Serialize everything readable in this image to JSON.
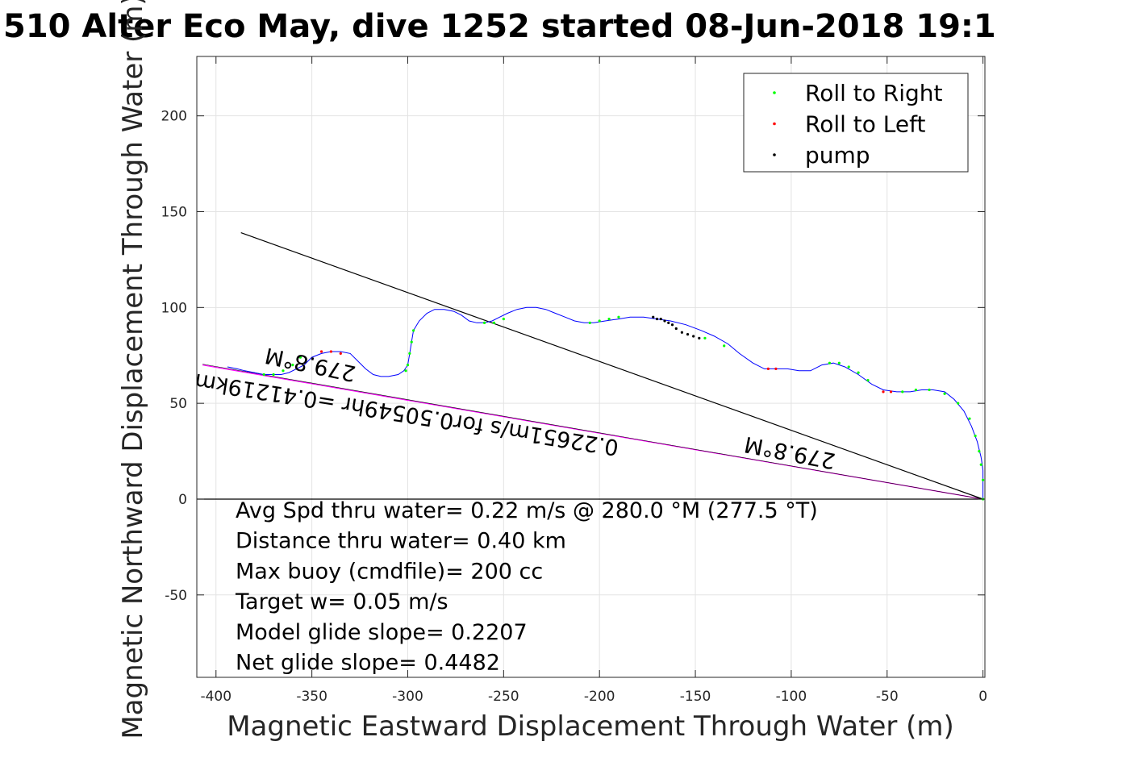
{
  "chart_data": {
    "type": "line",
    "title": "510 Alter Eco May, dive 1252 started 08-Jun-2018 19:1",
    "xlabel": "Magnetic Eastward Displacement Through Water (m)",
    "ylabel": "Magnetic Northward Displacement Through Water (m)",
    "xlim": [
      -410,
      1
    ],
    "ylim": [
      -93,
      231
    ],
    "xticks": [
      -400,
      -350,
      -300,
      -250,
      -200,
      -150,
      -100,
      -50,
      0
    ],
    "yticks": [
      -50,
      0,
      50,
      100,
      150,
      200
    ],
    "xtick_labels": [
      "-400",
      "-350",
      "-300",
      "-250",
      "-200",
      "-150",
      "-100",
      "-50",
      "0"
    ],
    "ytick_labels": [
      "-50",
      "0",
      "50",
      "100",
      "150",
      "200"
    ],
    "grid": true,
    "legend_position": "top-right",
    "legend": [
      {
        "label": "Roll to Right",
        "color": "#00ff00"
      },
      {
        "label": "Roll to Left",
        "color": "#ff0000"
      },
      {
        "label": "pump",
        "color": "#000000"
      }
    ],
    "track": {
      "name": "track through water",
      "color": "#0000ff",
      "x": [
        0,
        0,
        0,
        -1,
        -3,
        -6,
        -10,
        -15,
        -20,
        -26,
        -32,
        -38,
        -45,
        -52,
        -58,
        -65,
        -72,
        -78,
        -84,
        -90,
        -96,
        -102,
        -108,
        -114,
        -120,
        -127,
        -133,
        -140,
        -147,
        -155,
        -163,
        -170,
        -177,
        -184,
        -190,
        -197,
        -203,
        -208,
        -213,
        -218,
        -223,
        -228,
        -233,
        -238,
        -243,
        -248,
        -252,
        -256,
        -260,
        -264,
        -268,
        -272,
        -276,
        -281,
        -286,
        -290,
        -294,
        -297,
        -298,
        -299,
        -300,
        -302,
        -305,
        -310,
        -314,
        -318,
        -322,
        -326,
        -330,
        -335,
        -340,
        -345,
        -350,
        -354,
        -358,
        -362,
        -366,
        -370,
        -375,
        -380,
        -385,
        -389,
        -394
      ],
      "y": [
        0,
        8,
        15,
        22,
        30,
        38,
        46,
        52,
        56,
        57,
        57,
        56,
        56,
        57,
        60,
        65,
        69,
        71,
        70,
        67,
        67,
        68,
        68,
        68,
        71,
        76,
        81,
        85,
        88,
        91,
        93,
        94,
        95,
        95,
        94,
        93,
        92,
        92,
        93,
        95,
        97,
        99,
        100,
        100,
        99,
        97,
        95,
        93,
        92,
        92,
        93,
        96,
        98,
        99,
        99,
        97,
        93,
        88,
        82,
        76,
        70,
        67,
        65,
        64,
        64,
        65,
        68,
        72,
        76,
        77,
        77,
        76,
        74,
        70,
        68,
        66,
        65,
        65,
        65,
        66,
        67,
        68,
        69
      ]
    },
    "heading_line": {
      "name": "mean heading line",
      "color": "#000000",
      "x": [
        0,
        -387
      ],
      "y": [
        0,
        139
      ]
    },
    "displacement_line": {
      "name": "net displacement line",
      "color": "#ff00ff",
      "x": [
        0,
        -407
      ],
      "y": [
        0,
        70
      ]
    },
    "zero_line": {
      "name": "zero line",
      "color": "#000000",
      "x": [
        -410,
        0
      ],
      "y": [
        0,
        0
      ]
    },
    "roll_right_points": {
      "x": [
        0,
        0,
        -1,
        -2,
        -4,
        -7,
        -13,
        -20,
        -28,
        -35,
        -42,
        -60,
        -65,
        -70,
        -75,
        -80,
        -135,
        -145,
        -190,
        -195,
        -200,
        -205,
        -250,
        -255,
        -260,
        -297,
        -298,
        -299,
        -300,
        -301,
        -356,
        -360,
        -365,
        -370,
        -375
      ],
      "y": [
        0,
        10,
        18,
        25,
        33,
        42,
        50,
        55,
        57,
        57,
        56,
        62,
        66,
        69,
        71,
        71,
        80,
        84,
        95,
        94,
        93,
        92,
        94,
        92,
        92,
        88,
        82,
        76,
        70,
        67,
        74,
        70,
        67,
        65,
        65
      ]
    },
    "roll_left_points": {
      "x": [
        -48,
        -52,
        -108,
        -112,
        -335,
        -340,
        -345
      ],
      "y": [
        56,
        56,
        68,
        68,
        76,
        77,
        77
      ]
    },
    "pump_points": {
      "x": [
        -148,
        -151,
        -154,
        -157,
        -160,
        -162,
        -164,
        -166,
        -168,
        -170,
        -172
      ],
      "y": [
        84,
        85,
        86,
        87,
        89,
        91,
        92,
        93,
        94,
        94,
        95
      ]
    },
    "annotations": [
      {
        "text": "279.8°M",
        "x": -350,
        "y": 74
      },
      {
        "text": "279.8°M",
        "x": -100,
        "y": 28
      },
      {
        "text": "0.22651m/s for0.50549hr =0.41219km",
        "x": -300,
        "y": 48
      }
    ],
    "info_lines": [
      "Avg Spd thru water=  0.22 m/s @ 280.0 °M (277.5 °T)",
      "Distance thru water=  0.40 km",
      "Max buoy (cmdfile)= 200 cc",
      "Target w= 0.05 m/s",
      "Model glide slope= 0.2207",
      "Net glide slope= 0.4482"
    ]
  }
}
